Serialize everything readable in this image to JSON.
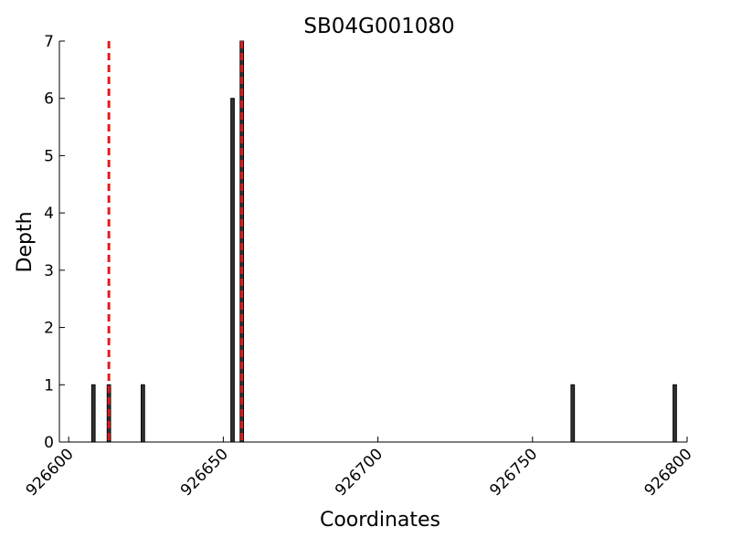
{
  "chart_data": {
    "type": "bar",
    "title": "SB04G001080",
    "x_label": "Coordinates",
    "y_label": "Depth",
    "x": [
      926608,
      926613,
      926624,
      926653,
      926656,
      926763,
      926796
    ],
    "values": [
      1,
      1,
      1,
      6,
      7,
      1,
      1
    ],
    "color": "#333333",
    "edge_color": "#000000",
    "xlim": [
      926597,
      926800
    ],
    "xticks": [
      926600,
      926650,
      926700,
      926750,
      926800
    ],
    "ylim": [
      0,
      7
    ],
    "yticks": [
      0,
      1,
      2,
      3,
      4,
      5,
      6,
      7
    ],
    "vlines": [
      926613,
      926656
    ],
    "vline_color": "#e31a1c",
    "grid": false
  }
}
